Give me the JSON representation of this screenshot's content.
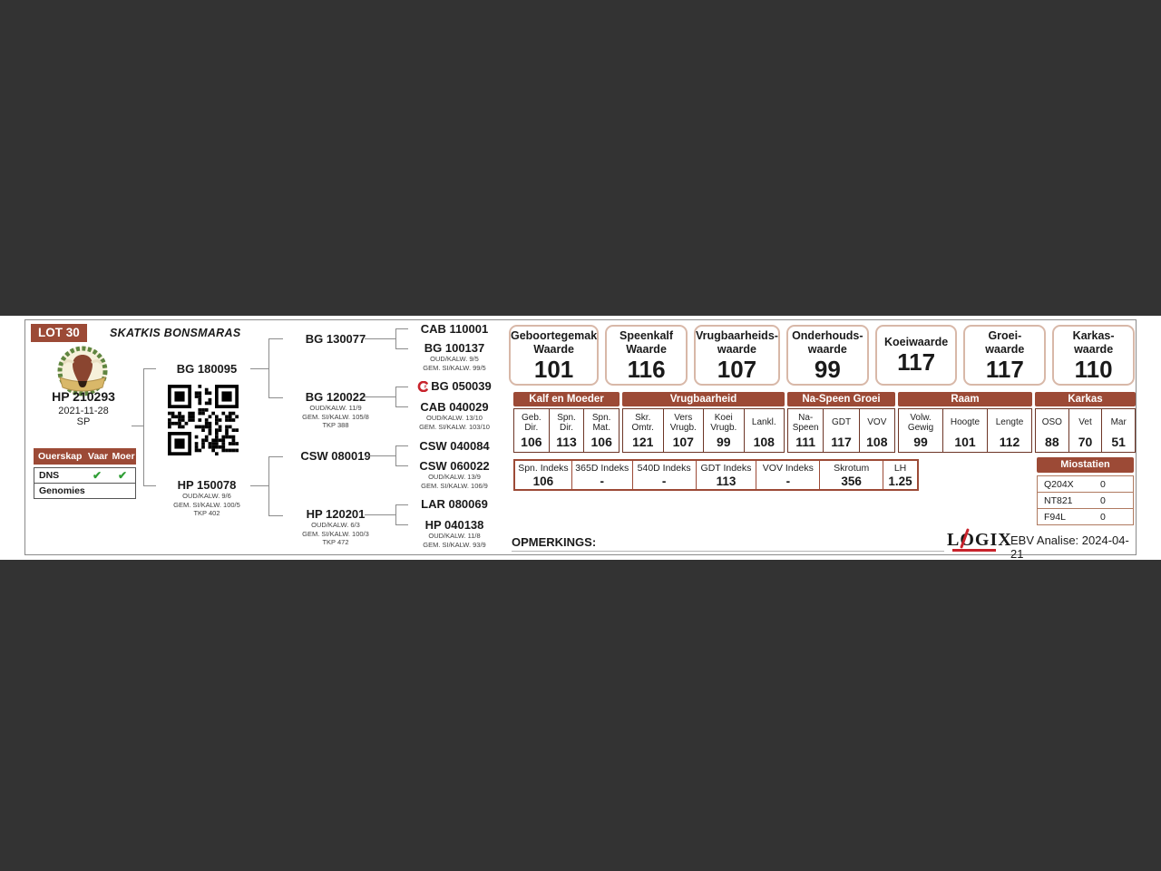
{
  "colors": {
    "accent": "#9c4a36",
    "box_border": "#d8b8a8",
    "check_green": "#2f9e35",
    "logo_red": "#c8232c",
    "viewer_background": "#333333"
  },
  "lot": {
    "label": "LOT 30",
    "title": "SKATKIS BONSMARAS"
  },
  "animal": {
    "id": "HP 210293",
    "birth_date": "2021-11-28",
    "status": "SP"
  },
  "parentage": {
    "col_label": "Ouerskap",
    "col_sire": "Vaar",
    "col_dam": "Moer",
    "rows": [
      {
        "label": "DNS",
        "sire_check": "✔",
        "dam_check": "✔"
      },
      {
        "label": "Genomies",
        "sire_check": "",
        "dam_check": ""
      }
    ]
  },
  "pedigree": {
    "sire": {
      "id": "BG 180095"
    },
    "dam": {
      "id": "HP 150078",
      "l1": "OUD/KALW. 9/6",
      "l2": "GEM. SI/KALW. 100/5",
      "l3": "TKP 402"
    },
    "sire_sire": {
      "id": "BG 130077"
    },
    "sire_dam": {
      "id": "BG 120022",
      "l1": "OUD/KALW. 11/9",
      "l2": "GEM. SI/KALW. 105/8",
      "l3": "TKP 388"
    },
    "dam_sire": {
      "id": "CSW 080019"
    },
    "dam_dam": {
      "id": "HP 120201",
      "l1": "OUD/KALW. 6/3",
      "l2": "GEM. SI/KALW. 100/3",
      "l3": "TKP 472"
    },
    "ss_sire": {
      "id": "CAB 110001"
    },
    "ss_dam": {
      "id": "BG 100137",
      "l1": "OUD/KALW. 9/5",
      "l2": "GEM. SI/KALW. 99/5"
    },
    "sd_sire": {
      "id": "BG 050039"
    },
    "sd_dam": {
      "id": "CAB 040029",
      "l1": "OUD/KALW. 13/10",
      "l2": "GEM. SI/KALW. 103/10"
    },
    "ds_sire": {
      "id": "CSW 040084"
    },
    "ds_dam": {
      "id": "CSW 060022",
      "l1": "OUD/KALW. 13/9",
      "l2": "GEM. SI/KALW. 106/9"
    },
    "dd_sire": {
      "id": "LAR 080069"
    },
    "dd_dam": {
      "id": "HP 040138",
      "l1": "OUD/KALW. 11/8",
      "l2": "GEM. SI/KALW. 93/9"
    }
  },
  "value_boxes": [
    {
      "label1": "Geboortegemak",
      "label2": "Waarde",
      "value": "101"
    },
    {
      "label1": "Speenkalf",
      "label2": "Waarde",
      "value": "116"
    },
    {
      "label1": "Vrugbaarheids-",
      "label2": "waarde",
      "value": "107"
    },
    {
      "label1": "Onderhouds-",
      "label2": "waarde",
      "value": "99"
    },
    {
      "label1": "Koeiwaarde",
      "label2": "",
      "value": "117"
    },
    {
      "label1": "Groei-",
      "label2": "waarde",
      "value": "117"
    },
    {
      "label1": "Karkas-",
      "label2": "waarde",
      "value": "110"
    }
  ],
  "ebv_table": {
    "groups": [
      {
        "title": "Kalf en Moeder",
        "cols": [
          {
            "l1": "Geb.",
            "l2": "Dir.",
            "value": "106"
          },
          {
            "l1": "Spn.",
            "l2": "Dir.",
            "value": "113"
          },
          {
            "l1": "Spn.",
            "l2": "Mat.",
            "value": "106"
          }
        ]
      },
      {
        "title": "Vrugbaarheid",
        "cols": [
          {
            "l1": "Skr.",
            "l2": "Omtr.",
            "value": "121"
          },
          {
            "l1": "Vers",
            "l2": "Vrugb.",
            "value": "107"
          },
          {
            "l1": "Koei",
            "l2": "Vrugb.",
            "value": "99"
          },
          {
            "l1": "Lankl.",
            "l2": "",
            "value": "108"
          }
        ]
      },
      {
        "title": "Na-Speen Groei",
        "cols": [
          {
            "l1": "Na-",
            "l2": "Speen",
            "value": "111"
          },
          {
            "l1": "GDT",
            "l2": "",
            "value": "117"
          },
          {
            "l1": "VOV",
            "l2": "",
            "value": "108"
          }
        ]
      },
      {
        "title": "Raam",
        "cols": [
          {
            "l1": "Volw.",
            "l2": "Gewig",
            "value": "99"
          },
          {
            "l1": "Hoogte",
            "l2": "",
            "value": "101"
          },
          {
            "l1": "Lengte",
            "l2": "",
            "value": "112"
          }
        ]
      },
      {
        "title": "Karkas",
        "cols": [
          {
            "l1": "OSO",
            "l2": "",
            "value": "88"
          },
          {
            "l1": "Vet",
            "l2": "",
            "value": "70"
          },
          {
            "l1": "Mar",
            "l2": "",
            "value": "51"
          }
        ]
      }
    ]
  },
  "index_row": {
    "cells": [
      {
        "label": "Spn. Indeks",
        "value": "106"
      },
      {
        "label": "365D Indeks",
        "value": "-"
      },
      {
        "label": "540D Indeks",
        "value": "-"
      },
      {
        "label": "GDT Indeks",
        "value": "113"
      },
      {
        "label": "VOV Indeks",
        "value": "-"
      },
      {
        "label": "Skrotum",
        "value": "356"
      },
      {
        "label": "LH",
        "value": "1.25"
      }
    ]
  },
  "miostatien": {
    "title": "Miostatien",
    "rows": [
      {
        "gene": "Q204X",
        "value": "0"
      },
      {
        "gene": "NT821",
        "value": "0"
      },
      {
        "gene": "F94L",
        "value": "0"
      }
    ]
  },
  "footer": {
    "opmerkings": "OPMERKINGS:",
    "logo_l": "L",
    "logo_o": "O",
    "logo_gix": "GIX",
    "analysis": "EBV Analise: 2024-04-21"
  }
}
